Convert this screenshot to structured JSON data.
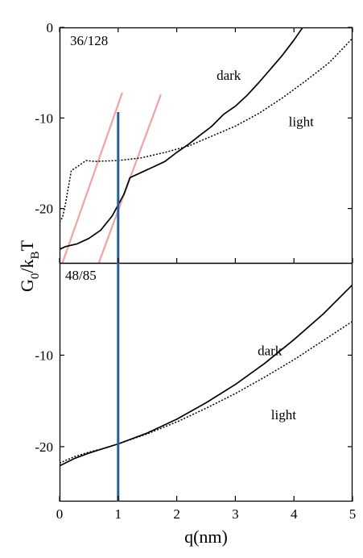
{
  "chart_data": {
    "type": "line",
    "xlabel": "q(nm)",
    "ylabel": "G0/kBT",
    "ylabel_parts": {
      "main": "G",
      "sub0": "0",
      "slash": "/k",
      "subB": "B",
      "tail": "T"
    },
    "xlim": [
      0,
      5
    ],
    "x_ticks": [
      "0",
      "1",
      "2",
      "3",
      "4",
      "5"
    ],
    "vertical_marker": {
      "x": 1.0,
      "color": "#1f5fa8"
    },
    "colors": {
      "dark": "#000000",
      "light": "#000000",
      "guide": "#f4a3a3",
      "marker": "#1f5fa8"
    },
    "panels": [
      {
        "label": "36/128",
        "ylim": [
          -26,
          0
        ],
        "y_ticks": [
          "0",
          "-10",
          "-20"
        ],
        "y_tick_values": [
          0,
          -10,
          -20
        ],
        "series": [
          {
            "name": "dark",
            "style": "solid",
            "x": [
              0.0,
              0.1,
              0.3,
              0.5,
              0.7,
              0.9,
              1.0,
              1.1,
              1.2,
              1.4,
              1.6,
              1.8,
              2.0,
              2.2,
              2.4,
              2.6,
              2.8,
              3.0,
              3.2,
              3.4,
              3.6,
              3.8,
              4.0,
              4.15
            ],
            "values": [
              -24.5,
              -24.2,
              -23.9,
              -23.3,
              -22.4,
              -20.8,
              -19.6,
              -18.4,
              -16.6,
              -16.0,
              -15.4,
              -14.8,
              -13.8,
              -12.9,
              -11.9,
              -10.9,
              -9.6,
              -8.7,
              -7.5,
              -6.1,
              -4.6,
              -3.1,
              -1.4,
              0.0
            ]
          },
          {
            "name": "light",
            "style": "dotted",
            "x": [
              0.0,
              0.05,
              0.1,
              0.2,
              0.3,
              0.45,
              0.6,
              1.0,
              1.4,
              1.8,
              2.2,
              2.6,
              3.0,
              3.4,
              3.8,
              4.2,
              4.6,
              5.0
            ],
            "values": [
              -21.5,
              -21.0,
              -19.5,
              -15.8,
              -15.4,
              -14.7,
              -14.8,
              -14.7,
              -14.4,
              -13.8,
              -13.1,
              -12.0,
              -10.9,
              -9.5,
              -7.8,
              -5.9,
              -3.9,
              -1.2
            ]
          }
        ],
        "guide_lines": [
          {
            "x": [
              0.05,
              1.07
            ],
            "values": [
              -26,
              -7.2
            ]
          },
          {
            "x": [
              0.67,
              1.73
            ],
            "values": [
              -26,
              -7.4
            ]
          }
        ],
        "annotations": [
          {
            "text": "dark",
            "x": 2.68,
            "y": -5.8
          },
          {
            "text": "light",
            "x": 3.91,
            "y": -10.9
          }
        ]
      },
      {
        "label": "48/85",
        "ylim": [
          -26,
          0
        ],
        "y_ticks": [
          "-10",
          "-20"
        ],
        "y_tick_values": [
          -10,
          -20
        ],
        "series": [
          {
            "name": "dark",
            "style": "solid",
            "x": [
              0.0,
              0.25,
              0.5,
              0.75,
              1.0,
              1.5,
              2.0,
              2.5,
              3.0,
              3.5,
              4.0,
              4.5,
              5.0
            ],
            "values": [
              -22.1,
              -21.3,
              -20.7,
              -20.2,
              -19.7,
              -18.5,
              -17.0,
              -15.2,
              -13.2,
              -10.9,
              -8.3,
              -5.5,
              -2.3
            ]
          },
          {
            "name": "light",
            "style": "dotted",
            "x": [
              0.0,
              0.25,
              0.5,
              0.75,
              1.0,
              1.5,
              2.0,
              2.5,
              3.0,
              3.5,
              4.0,
              4.5,
              5.0
            ],
            "values": [
              -21.8,
              -21.1,
              -20.6,
              -20.2,
              -19.7,
              -18.6,
              -17.3,
              -15.8,
              -14.2,
              -12.4,
              -10.5,
              -8.4,
              -6.3
            ]
          }
        ],
        "annotations": [
          {
            "text": "dark",
            "x": 3.38,
            "y": -10.0
          },
          {
            "text": "light",
            "x": 3.61,
            "y": -17.0
          }
        ]
      }
    ]
  }
}
